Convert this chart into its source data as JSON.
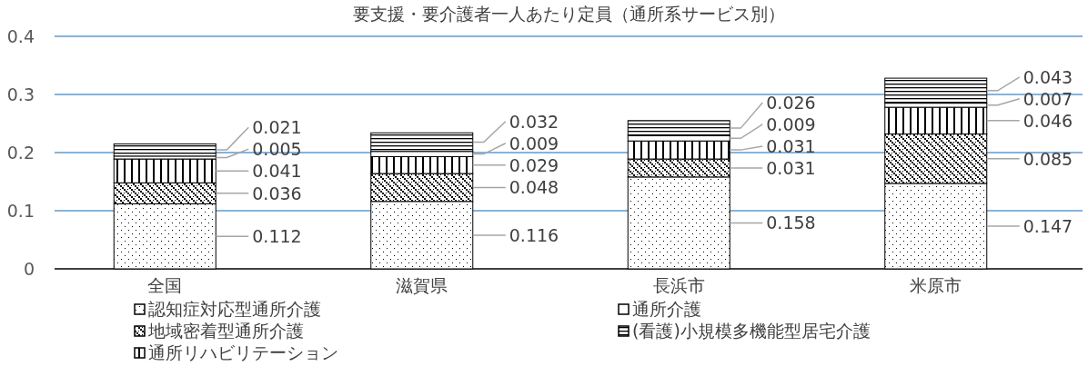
{
  "chart_data": {
    "type": "bar",
    "stacked": true,
    "title": "要支援・要介護者一人あたり定員（通所系サービス別）",
    "categories": [
      "全国",
      "滋賀県",
      "長浜市",
      "米原市"
    ],
    "series": [
      {
        "name": "認知症対応型通所介護",
        "color": "#000000",
        "values": [
          0.112,
          0.116,
          0.158,
          0.147
        ]
      },
      {
        "name": "地域密着型通所介護",
        "color": "#000000",
        "values": [
          0.036,
          0.048,
          0.031,
          0.085
        ]
      },
      {
        "name": "通所リハビリテーション",
        "color": "#000000",
        "values": [
          0.041,
          0.029,
          0.031,
          0.046
        ]
      },
      {
        "name": "通所介護",
        "color": "#000000",
        "values": [
          0.005,
          0.009,
          0.009,
          0.007
        ]
      },
      {
        "name": "(看護)小規模多機能型居宅介護",
        "color": "#000000",
        "values": [
          0.021,
          0.032,
          0.026,
          0.043
        ]
      }
    ],
    "ylim": [
      0,
      0.4
    ],
    "yticks": [
      0,
      0.1,
      0.2,
      0.3,
      0.4
    ],
    "grid": "y",
    "data_labels": true,
    "legend": "bottom"
  }
}
